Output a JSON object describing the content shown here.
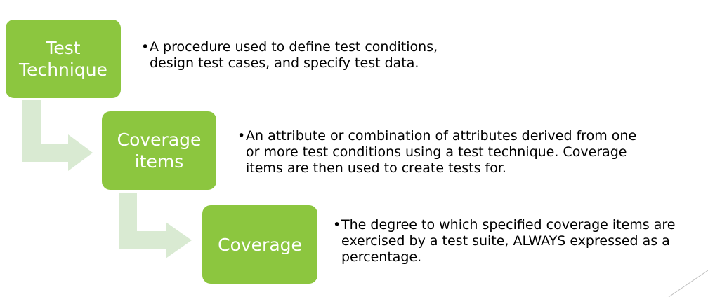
{
  "colors": {
    "box_fill": "#8cc63f",
    "arrow_fill": "#d9ead2",
    "box_text": "#ffffff",
    "body_text": "#000000"
  },
  "steps": [
    {
      "box_label": "Test\nTechnique",
      "bullet": "•",
      "description": "A procedure used to define test conditions,\ndesign test cases, and specify test data."
    },
    {
      "box_label": "Coverage\nitems",
      "bullet": "•",
      "description": "An attribute or combination of attributes derived from one\nor more test conditions using a test technique. Coverage\nitems are then used to create tests for."
    },
    {
      "box_label": "Coverage",
      "bullet": "•",
      "description": "The degree to which specified coverage items are\nexercised by a test suite, ALWAYS expressed as a\npercentage."
    }
  ]
}
